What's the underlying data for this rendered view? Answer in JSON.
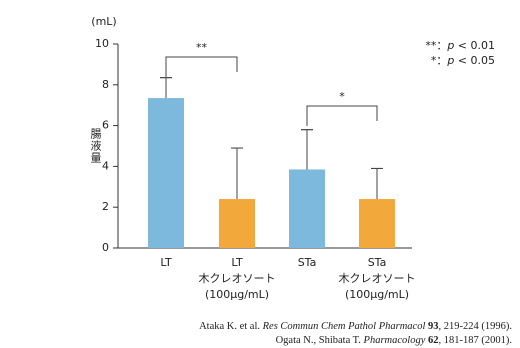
{
  "chart_data": {
    "type": "bar",
    "y_unit": "(mL)",
    "ylabel": "腸液量",
    "categories": [
      [
        "LT"
      ],
      [
        "LT",
        "木クレオソート",
        "(100μg/mL)"
      ],
      [
        "STa"
      ],
      [
        "STa",
        "木クレオソート",
        "(100μg/mL)"
      ]
    ],
    "values": [
      7.35,
      2.4,
      3.85,
      2.4
    ],
    "errors": [
      1.0,
      2.5,
      1.95,
      1.5
    ],
    "colors": [
      "#7cb9dc",
      "#f2a83a",
      "#7cb9dc",
      "#f2a83a"
    ],
    "ylim": [
      0,
      10
    ],
    "yticks": [
      0,
      2,
      4,
      6,
      8,
      10
    ],
    "significance": [
      "**",
      "*"
    ],
    "notes": [
      [
        "**：",
        "p",
        " < 0.01"
      ],
      [
        "*：",
        "p",
        " < 0.05"
      ]
    ]
  },
  "references": [
    [
      {
        "text": "Ataka K. et al. "
      },
      {
        "text": "Res Commun Chem Pathol Pharmacol",
        "style": "italic"
      },
      {
        "text": " "
      },
      {
        "text": "93",
        "style": "bold"
      },
      {
        "text": ", 219-224 (1996)."
      }
    ],
    [
      {
        "text": "Ogata N., Shibata T. "
      },
      {
        "text": "Pharmacology",
        "style": "italic"
      },
      {
        "text": " "
      },
      {
        "text": "62",
        "style": "bold"
      },
      {
        "text": ", 181-187 (2001)."
      }
    ]
  ]
}
